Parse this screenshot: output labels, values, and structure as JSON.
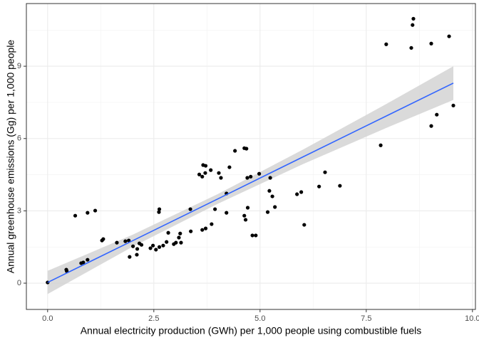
{
  "chart_data": {
    "type": "scatter",
    "x_label": "Annual electricity production (GWh) per 1,000 people using combustible fuels",
    "y_label": "Annual greenhouse emissions (Gg) per 1,000 people",
    "color": "#000000",
    "xlim": [
      -0.5,
      10.07
    ],
    "ylim": [
      -1.09,
      11.6
    ],
    "xticks": [
      {
        "value": 0,
        "label": "0.0"
      },
      {
        "value": 2.5,
        "label": "2.5"
      },
      {
        "value": 5,
        "label": "5.0"
      },
      {
        "value": 7.5,
        "label": "7.5"
      },
      {
        "value": 10,
        "label": "10.0"
      }
    ],
    "yticks": [
      0,
      3,
      6,
      9
    ],
    "xminor": [
      1.25,
      3.75,
      6.25,
      8.75
    ],
    "yminor": [
      1.5,
      4.5,
      7.5,
      10.5
    ],
    "grid": true,
    "x": [
      0,
      0.44,
      0.45,
      0.65,
      0.79,
      0.84,
      0.94,
      0.94,
      1.12,
      1.28,
      1.31,
      1.63,
      1.83,
      1.91,
      1.93,
      2.01,
      2.1,
      2.11,
      2.16,
      2.21,
      2.42,
      2.48,
      2.55,
      2.63,
      2.62,
      2.63,
      2.72,
      2.8,
      2.84,
      2.97,
      3.02,
      3.09,
      3.12,
      3.14,
      3.37,
      3.36,
      3.57,
      3.64,
      3.66,
      3.71,
      3.64,
      3.72,
      3.72,
      3.84,
      3.86,
      3.94,
      4.03,
      4.08,
      4.21,
      4.21,
      4.28,
      4.41,
      4.63,
      4.68,
      4.63,
      4.66,
      4.71,
      4.7,
      4.78,
      4.82,
      4.9,
      4.98,
      5.18,
      5.22,
      5.24,
      5.29,
      5.35,
      5.87,
      5.97,
      6.04,
      6.39,
      6.53,
      6.88,
      7.84,
      7.97,
      8.56,
      8.59,
      8.61,
      9.03,
      9.03,
      9.16,
      9.45,
      9.55
    ],
    "values": [
      0.03,
      0.56,
      0.5,
      2.8,
      0.83,
      0.86,
      0.97,
      2.92,
      3.01,
      1.77,
      1.83,
      1.68,
      1.74,
      1.77,
      1.09,
      1.53,
      1.18,
      1.42,
      1.65,
      1.59,
      1.45,
      1.56,
      1.39,
      1.5,
      2.95,
      3.07,
      1.56,
      1.71,
      2.09,
      1.62,
      1.68,
      1.89,
      2.06,
      1.68,
      2.15,
      3.07,
      4.51,
      4.42,
      4.9,
      4.57,
      2.21,
      2.27,
      4.87,
      4.69,
      2.45,
      3.07,
      4.57,
      4.37,
      3.72,
      2.92,
      4.81,
      5.49,
      5.6,
      5.58,
      2.8,
      2.63,
      3.13,
      4.37,
      4.42,
      1.98,
      1.98,
      4.54,
      2.95,
      3.83,
      4.37,
      3.6,
      3.16,
      3.69,
      3.78,
      2.42,
      4.01,
      4.6,
      4.04,
      5.72,
      9.91,
      9.76,
      10.71,
      10.97,
      9.94,
      6.52,
      6.99,
      10.24,
      7.37
    ],
    "trend": {
      "color": "#3366ff",
      "band_color": "#d3d3d3",
      "x": [
        0,
        2,
        4,
        6,
        8,
        9.55
      ],
      "values": [
        0.03,
        1.76,
        3.49,
        5.23,
        6.96,
        8.3
      ],
      "lower": [
        -0.45,
        1.51,
        3.29,
        4.93,
        6.46,
        7.6
      ],
      "upper": [
        0.51,
        2.01,
        3.69,
        5.53,
        7.46,
        9.0
      ]
    }
  }
}
